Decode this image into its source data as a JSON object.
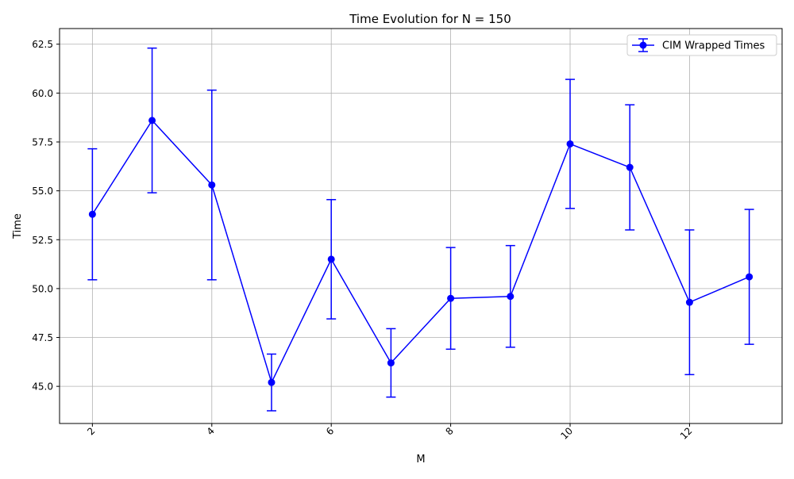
{
  "chart_data": {
    "type": "line",
    "title": "Time Evolution for N = 150",
    "xlabel": "M",
    "ylabel": "Time",
    "xlim": [
      1.45,
      13.55
    ],
    "ylim": [
      43.1,
      63.3
    ],
    "x_ticks": [
      2,
      4,
      6,
      8,
      10,
      12
    ],
    "x_tick_labels": [
      "2",
      "4",
      "6",
      "8",
      "10",
      "12"
    ],
    "y_ticks": [
      45.0,
      47.5,
      50.0,
      52.5,
      55.0,
      57.5,
      60.0,
      62.5
    ],
    "y_tick_labels": [
      "45.0",
      "47.5",
      "50.0",
      "52.5",
      "55.0",
      "57.5",
      "60.0",
      "62.5"
    ],
    "grid": true,
    "legend_position": "upper right",
    "colors": {
      "series": "#0000ff",
      "grid": "#b0b0b0"
    },
    "series": [
      {
        "name": "CIM Wrapped Times",
        "x": [
          2,
          3,
          4,
          5,
          6,
          7,
          8,
          9,
          10,
          11,
          12,
          13
        ],
        "values": [
          53.8,
          58.6,
          55.3,
          45.2,
          51.5,
          46.2,
          49.5,
          49.6,
          57.4,
          56.2,
          49.3,
          50.6
        ],
        "errors": [
          3.35,
          3.7,
          4.85,
          1.45,
          3.05,
          1.75,
          2.6,
          2.6,
          3.3,
          3.2,
          3.7,
          3.45
        ]
      }
    ]
  }
}
